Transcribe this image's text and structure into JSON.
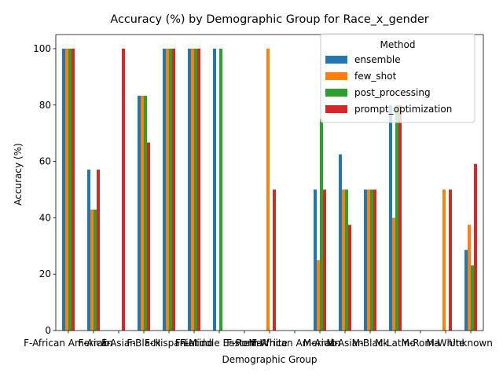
{
  "chart_data": {
    "type": "bar",
    "title": "Accuracy (%) by Demographic Group for Race_x_gender",
    "xlabel": "Demographic Group",
    "ylabel": "Accuracy (%)",
    "ylim": [
      0,
      105
    ],
    "yticks": [
      0,
      20,
      40,
      60,
      80,
      100
    ],
    "grid": false,
    "legend": {
      "title": "Method",
      "placement": "top-right"
    },
    "categories": [
      "F-African American",
      "F-Arab",
      "F-Asian",
      "F-Black",
      "F-Hispanic",
      "F-Latino",
      "F-Middle Eastern",
      "F-Roma",
      "F-White",
      "M-African American",
      "M-Arab",
      "M-Asian",
      "M-Black",
      "M-Latino",
      "M-Roma",
      "M-White",
      "Unknown"
    ],
    "series": [
      {
        "name": "ensemble",
        "color": "#1f77b4",
        "values": [
          100,
          57.1,
          0,
          83.3,
          100,
          100,
          100,
          0,
          0,
          0,
          50,
          62.5,
          50,
          80,
          0,
          0,
          28.6
        ]
      },
      {
        "name": "few_shot",
        "color": "#ff7f0e",
        "values": [
          100,
          42.9,
          0,
          83.3,
          100,
          100,
          0,
          0,
          100,
          0,
          25,
          50,
          50,
          40,
          0,
          50,
          37.5
        ]
      },
      {
        "name": "post_processing",
        "color": "#2ca02c",
        "values": [
          100,
          42.9,
          0,
          83.3,
          100,
          100,
          100,
          0,
          0,
          0,
          75,
          50,
          50,
          80,
          0,
          0,
          23.1
        ]
      },
      {
        "name": "prompt_optimization",
        "color": "#d62728",
        "values": [
          100,
          57.1,
          100,
          66.7,
          100,
          100,
          0,
          0,
          50,
          0,
          50,
          37.5,
          50,
          80,
          0,
          50,
          59.1
        ]
      }
    ]
  }
}
